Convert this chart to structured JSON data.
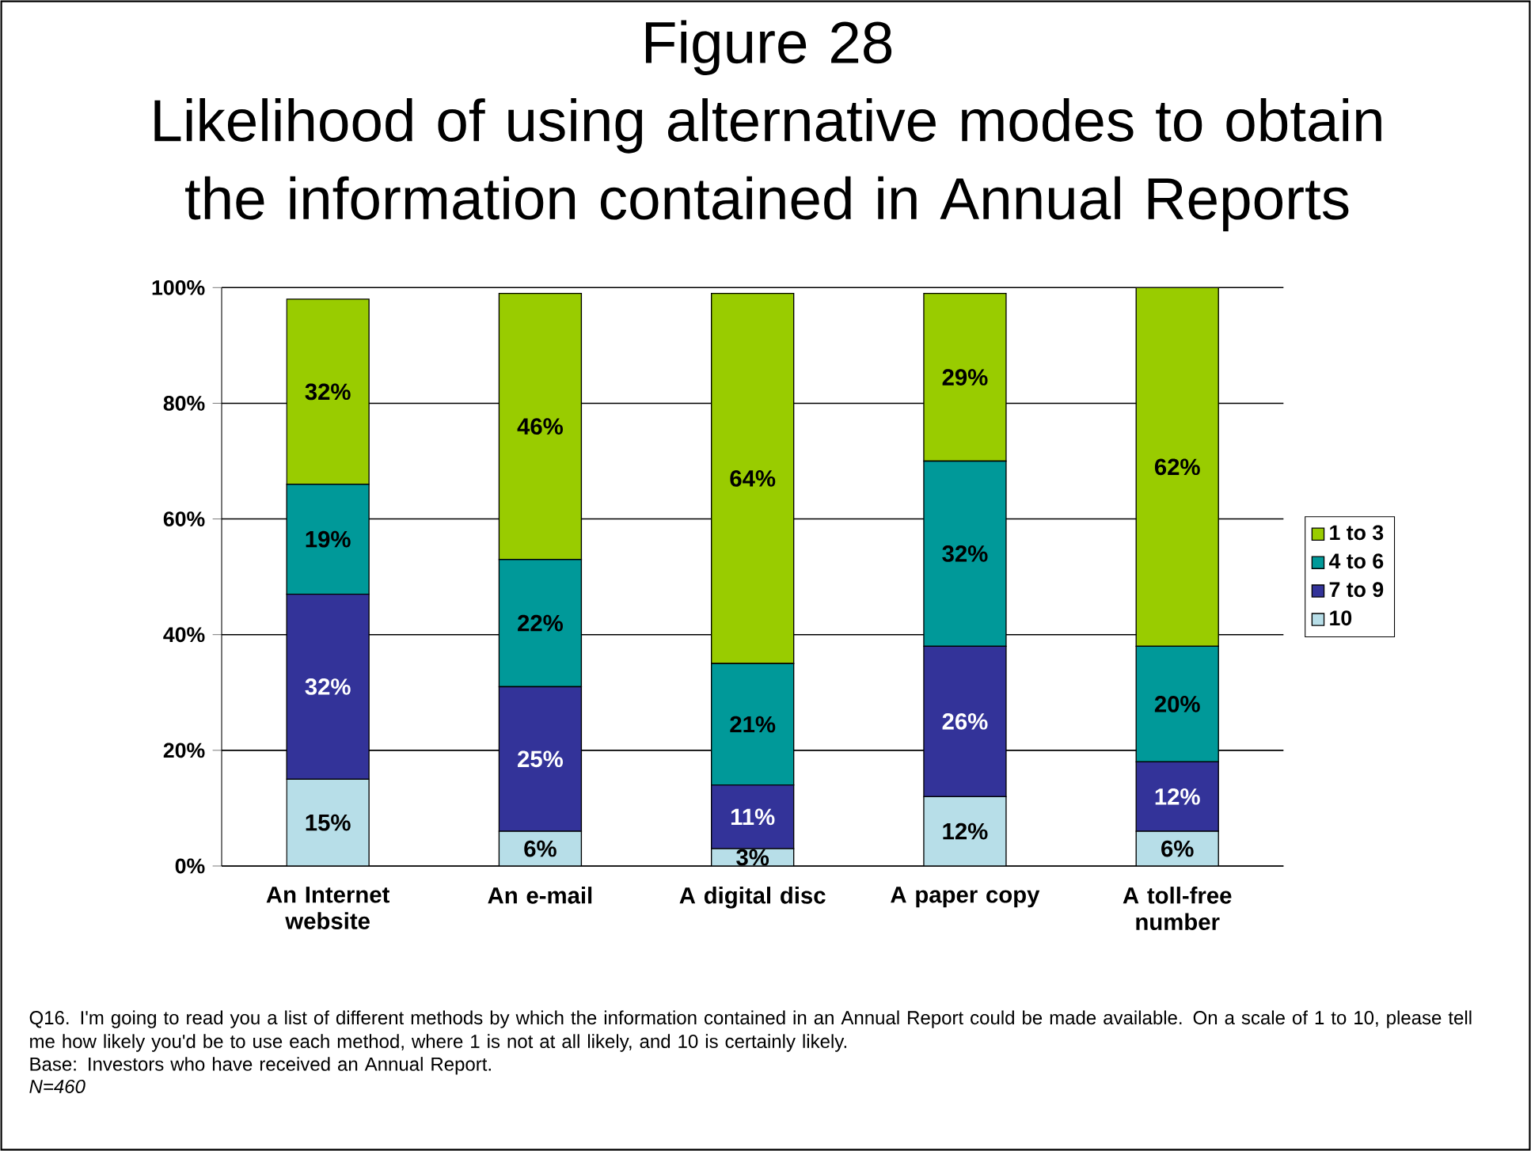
{
  "chart_data": {
    "type": "bar",
    "stacked": true,
    "title": "Figure 28",
    "subtitle": "Likelihood of using alternative modes to obtain the information contained in Annual Reports",
    "categories": [
      "An Internet website",
      "An e-mail",
      "A digital disc",
      "A paper copy",
      "A toll-free number"
    ],
    "series": [
      {
        "name": "10",
        "color": "#b7dee8",
        "values": [
          15,
          6,
          3,
          12,
          6
        ],
        "value_labels": [
          "15%",
          "6%",
          "3%",
          "12%",
          "6%"
        ]
      },
      {
        "name": "7 to 9",
        "color": "#333399",
        "values": [
          32,
          25,
          11,
          26,
          12
        ],
        "value_labels": [
          "32%",
          "25%",
          "11%",
          "26%",
          "12%"
        ]
      },
      {
        "name": "4 to 6",
        "color": "#009999",
        "values": [
          19,
          22,
          21,
          32,
          20
        ],
        "value_labels": [
          "19%",
          "22%",
          "21%",
          "32%",
          "20%"
        ]
      },
      {
        "name": "1 to 3",
        "color": "#99cc00",
        "values": [
          32,
          46,
          64,
          29,
          62
        ],
        "value_labels": [
          "32%",
          "46%",
          "64%",
          "29%",
          "62%"
        ]
      }
    ],
    "ylim": [
      0,
      100
    ],
    "yticks": [
      {
        "value": 0,
        "label": "0%"
      },
      {
        "value": 20,
        "label": "20%"
      },
      {
        "value": 40,
        "label": "40%"
      },
      {
        "value": 60,
        "label": "60%"
      },
      {
        "value": 80,
        "label": "80%"
      },
      {
        "value": 100,
        "label": "100%"
      }
    ],
    "grid": "y",
    "legend": "right",
    "annotations": [
      "Q16. I'm going to read you a list of different methods by which the information contained in an Annual Report could be made available.  On a scale of 1 to 10, please tell me how likely you'd be to use each method,  where 1 is not at all likely, and 10 is certainly likely.",
      "Base: Investors who have received an Annual Report.",
      "N=460"
    ]
  }
}
